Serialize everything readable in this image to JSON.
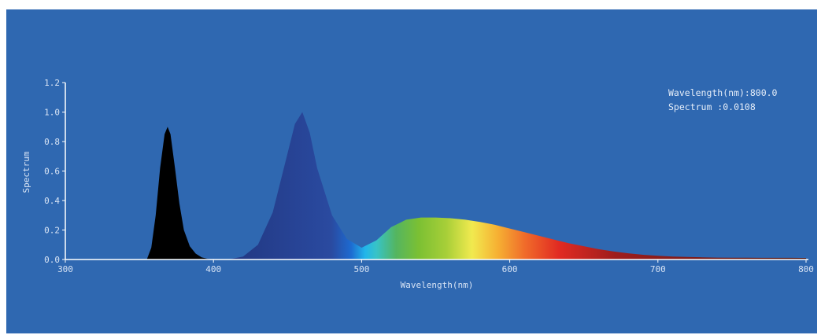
{
  "chart_data": {
    "type": "area",
    "xlabel": "Wavelength(nm)",
    "ylabel": "Spectrum",
    "xlim": [
      300,
      800
    ],
    "ylim": [
      0,
      1.2
    ],
    "x_ticks": [
      300,
      400,
      500,
      600,
      700,
      800
    ],
    "x_tick_labels": [
      "300",
      "400",
      "500",
      "600",
      "700",
      "800"
    ],
    "y_ticks": [
      0,
      0.2,
      0.4,
      0.6,
      0.8,
      1.0,
      1.2
    ],
    "y_tick_labels": [
      "0.0",
      "0.2",
      "0.4",
      "0.6",
      "0.8",
      "1.0",
      "1.2"
    ],
    "readout": {
      "wavelength_label": "Wavelength(nm):800.0",
      "spectrum_label": "Spectrum :0.0108"
    },
    "series": [
      {
        "color": "#000000",
        "x": [
          355,
          358,
          361,
          364,
          367,
          369,
          371,
          374,
          377,
          380,
          384,
          388,
          392,
          396,
          400
        ],
        "y": [
          0.0,
          0.08,
          0.3,
          0.62,
          0.85,
          0.9,
          0.85,
          0.62,
          0.38,
          0.2,
          0.09,
          0.04,
          0.015,
          0.005,
          0.0
        ]
      },
      {
        "color": "spectral",
        "x": [
          410,
          420,
          430,
          440,
          450,
          455,
          460,
          465,
          470,
          480,
          490,
          500,
          510,
          520,
          530,
          540,
          550,
          560,
          570,
          580,
          590,
          600,
          610,
          620,
          630,
          640,
          650,
          660,
          670,
          680,
          690,
          700,
          710,
          720,
          730,
          740,
          750,
          760,
          770,
          780,
          790,
          800
        ],
        "y": [
          0.0,
          0.02,
          0.1,
          0.32,
          0.72,
          0.92,
          1.0,
          0.86,
          0.62,
          0.3,
          0.14,
          0.08,
          0.13,
          0.22,
          0.27,
          0.285,
          0.285,
          0.28,
          0.27,
          0.255,
          0.235,
          0.21,
          0.185,
          0.16,
          0.135,
          0.11,
          0.09,
          0.07,
          0.055,
          0.042,
          0.032,
          0.025,
          0.02,
          0.017,
          0.015,
          0.013,
          0.012,
          0.012,
          0.011,
          0.011,
          0.011,
          0.0108
        ]
      }
    ],
    "colors": {
      "background": "#2f68b1",
      "axis": "#ffffff",
      "text": "#d8e4f5"
    }
  }
}
